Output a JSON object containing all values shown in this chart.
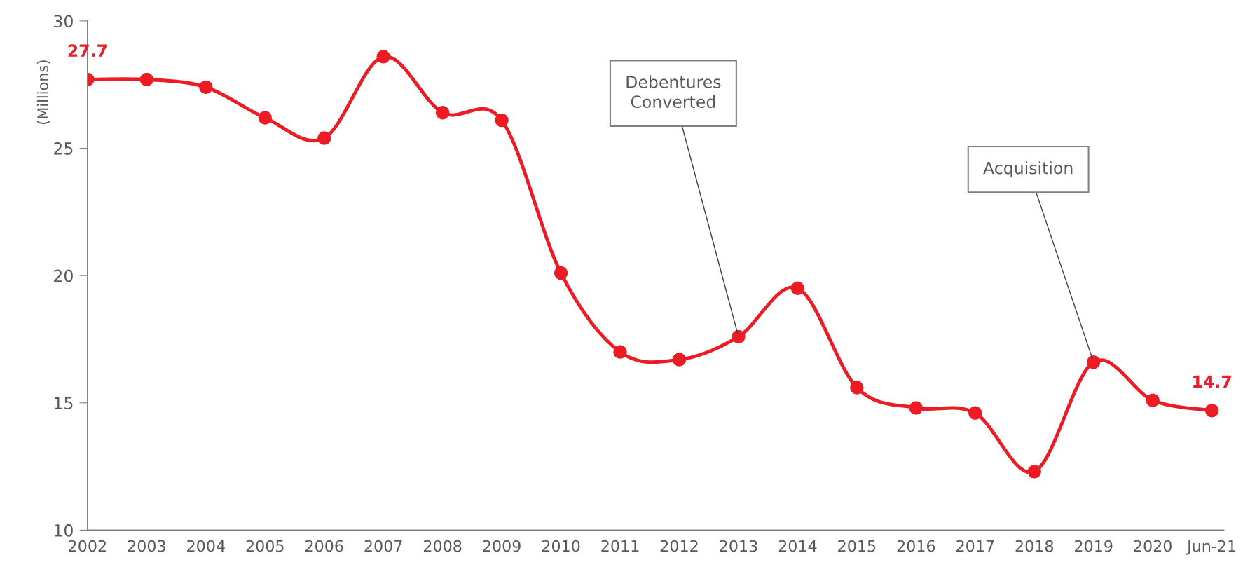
{
  "chart_data": {
    "type": "line",
    "ylabel": "(Millions)",
    "categories": [
      "2002",
      "2003",
      "2004",
      "2005",
      "2006",
      "2007",
      "2008",
      "2009",
      "2010",
      "2011",
      "2012",
      "2013",
      "2014",
      "2015",
      "2016",
      "2017",
      "2018",
      "2019",
      "2020",
      "Jun-21"
    ],
    "series": [
      {
        "color": "#ed1c24",
        "values": [
          27.7,
          27.7,
          27.4,
          26.2,
          25.4,
          28.6,
          26.4,
          26.1,
          20.1,
          17.0,
          16.7,
          17.6,
          19.5,
          15.6,
          14.8,
          14.6,
          12.3,
          16.6,
          15.1,
          14.7
        ],
        "value_labels": [
          "27.7",
          null,
          null,
          null,
          null,
          null,
          null,
          null,
          null,
          null,
          null,
          null,
          null,
          null,
          null,
          null,
          null,
          null,
          null,
          "14.7"
        ]
      }
    ],
    "ylim": [
      10,
      30
    ],
    "yticks": [
      10,
      15,
      20,
      25,
      30
    ],
    "grid": false,
    "legend": false,
    "marker": "circle",
    "line_style": "solid",
    "annotations": [
      {
        "text": "Debentures\nConverted",
        "x": "2013",
        "y": 17.6
      },
      {
        "text": "Acquisition",
        "x": "2019",
        "y": 16.6
      }
    ]
  }
}
